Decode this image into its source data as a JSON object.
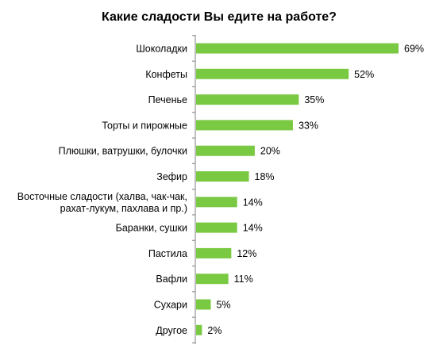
{
  "chart_data": {
    "type": "bar",
    "orientation": "horizontal",
    "title": "Какие сладости Вы едите на работе?",
    "categories": [
      "Шоколадки",
      "Конфеты",
      "Печенье",
      "Торты и пирожные",
      "Плюшки,  ватрушки, булочки",
      "Зефир",
      "Восточные сладости (халва, чак-чак, рахат-лукум, пахлава и пр.)",
      "Баранки, сушки",
      "Пастила",
      "Вафли",
      "Сухари",
      "Другое"
    ],
    "values": [
      69,
      52,
      35,
      33,
      20,
      18,
      14,
      14,
      12,
      11,
      5,
      2
    ],
    "value_labels": [
      "69%",
      "52%",
      "35%",
      "33%",
      "20%",
      "18%",
      "14%",
      "14%",
      "12%",
      "11%",
      "5%",
      "2%"
    ],
    "unit": "%",
    "bar_color": "#7ac943",
    "axis_color": "#7f7f7f",
    "grid": false,
    "legend": "none"
  }
}
